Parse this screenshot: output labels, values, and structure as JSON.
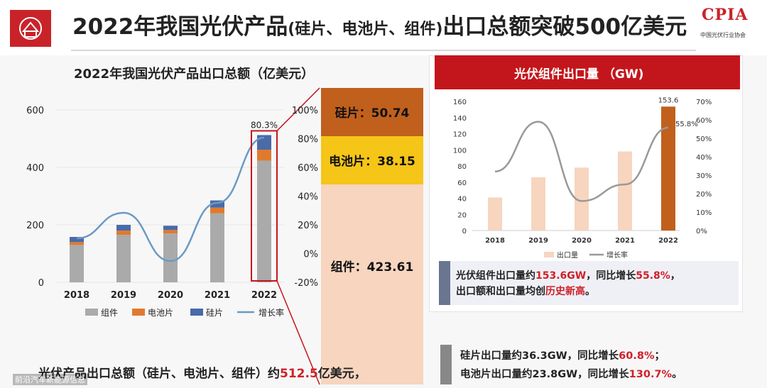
{
  "header": {
    "title_main": "2022年我国光伏产品",
    "title_paren": "(硅片、电池片、组件)",
    "title_tail": "出口总额突破500亿美元",
    "logo_text": "CPIA",
    "logo_sub": "中国光伏行业协会"
  },
  "left_chart_title": "2022年我国光伏产品出口总额（亿美元）",
  "bottom_text": {
    "prefix": "光伏产品出口总额（硅片、电池片、组件）约",
    "value": "512.5",
    "suffix": "亿美元，"
  },
  "watermark": "前沿汽车新能源信息",
  "right_chart_title": "光伏组件出口量 （GW)",
  "note1": {
    "line1_prefix": "光伏组件出口量约",
    "line1_value": "153.6GW",
    "line1_mid": "，同比增长",
    "line1_pct": "55.8%",
    "line1_end": "，",
    "line2_prefix": "出口额和出口量均创",
    "line2_red": "历史新高",
    "line2_end": "。"
  },
  "note2": {
    "line1_prefix": "硅片出口量约36.3GW，同比增长",
    "line1_pct": "60.8%",
    "line1_end": "；",
    "line2_prefix": "电池片出口量约23.8GW，同比增长",
    "line2_pct": "130.7%",
    "line2_end": "。"
  },
  "chart_data": [
    {
      "type": "bar",
      "stacked": true,
      "categories": [
        "2018",
        "2019",
        "2020",
        "2021",
        "2022"
      ],
      "series": [
        {
          "name": "组件",
          "color": "#aaaaaa",
          "values": [
            130,
            165,
            170,
            240,
            423.61
          ]
        },
        {
          "name": "电池片",
          "color": "#e07a2e",
          "values": [
            10,
            15,
            12,
            20,
            38.15
          ]
        },
        {
          "name": "硅片",
          "color": "#4a6aa8",
          "values": [
            18,
            20,
            15,
            25,
            50.74
          ]
        }
      ],
      "line_series": {
        "name": "增长率",
        "color": "#6b9ac4"
      },
      "annotations": [
        {
          "category": "2022",
          "label": "80.3%"
        }
      ],
      "ylim": [
        0,
        600
      ],
      "yticks": [
        "0",
        "200",
        "400",
        "600"
      ],
      "secondary_axis_ticks": [
        "100%",
        "80%",
        "60%",
        "40%",
        "20%",
        "0%",
        "-20%"
      ],
      "legend_position": "bottom",
      "zoom_breakdown": [
        {
          "label": "硅片：50.74",
          "value": 50.74,
          "color": "#c0601c"
        },
        {
          "label": "电池片：38.15",
          "value": 38.15,
          "color": "#f5c518"
        },
        {
          "label": "组件：423.61",
          "value": 423.61,
          "color": "#f7d5bf"
        }
      ]
    },
    {
      "type": "bar",
      "categories": [
        "2018",
        "2019",
        "2020",
        "2021",
        "2022"
      ],
      "series": [
        {
          "name": "出口量",
          "color": "#f7d5bf",
          "values": [
            41,
            66,
            78,
            98,
            153.6
          ],
          "highlight_last": "#c0601c"
        },
        {
          "name": "增长率",
          "type": "line",
          "color": "#999999",
          "values": [
            0.32,
            0.59,
            0.16,
            0.25,
            0.558
          ]
        }
      ],
      "data_labels": [
        {
          "category": "2022",
          "series": "出口量",
          "label": "153.6"
        },
        {
          "category": "2022",
          "series": "增长率",
          "label": "55.8%"
        }
      ],
      "ylim": [
        0,
        160
      ],
      "yticks": [
        "0",
        "20",
        "40",
        "60",
        "80",
        "100",
        "120",
        "140",
        "160"
      ],
      "y2lim": [
        0,
        0.7
      ],
      "y2ticks": [
        "0%",
        "10%",
        "20%",
        "30%",
        "40%",
        "50%",
        "60%",
        "70%"
      ],
      "legend_position": "bottom"
    }
  ]
}
